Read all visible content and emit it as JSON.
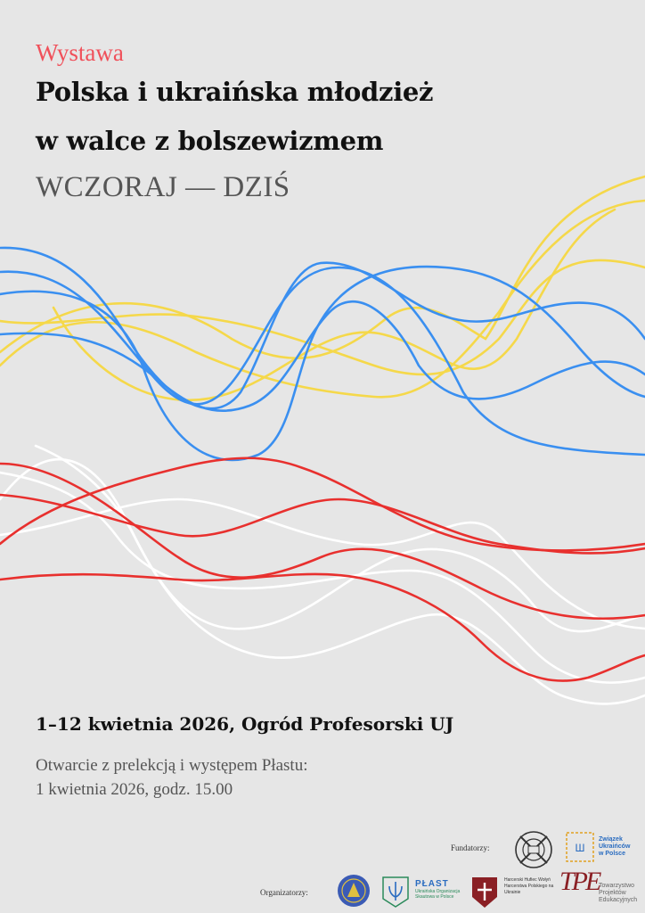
{
  "header": {
    "kicker": "Wystawa",
    "title_line1": "Polska i ukraińska młodzież",
    "title_line2": "w walce z bolszewizmem",
    "subtitle": "WCZORAJ — DZIŚ"
  },
  "event": {
    "dates_place": "1–12 kwietnia 2026, Ogród Profesorski UJ",
    "opening_line1": "Otwarcie z prelekcją i występem Płastu:",
    "opening_line2": "1 kwietnia 2026, godz. 15.00"
  },
  "footer": {
    "funders_label": "Fundatorzy:",
    "organizers_label": "Organizatorzy:",
    "zup_name_1": "Związek",
    "zup_name_2": "Ukraińców",
    "zup_name_3": "w Polsce",
    "plast_name": "PŁAST",
    "plast_desc_1": "Ukraińska Organizacja",
    "plast_desc_2": "Skautowa w Polsce",
    "harc_1": "Harcerski Hufiec Wołyń",
    "harc_2": "Harcerstwa Polskiego na",
    "harc_3": "Ukrainie",
    "tpe_mark": "TPE",
    "tpe_1": "Towarzystwo",
    "tpe_2": "Projektów",
    "tpe_3": "Edukacyjnych"
  },
  "colors": {
    "background": "#e6e6e6",
    "kicker": "#f0505a",
    "yellow": "#f5d84a",
    "blue": "#3a8ff0",
    "red": "#e8302e",
    "white": "#ffffff"
  }
}
